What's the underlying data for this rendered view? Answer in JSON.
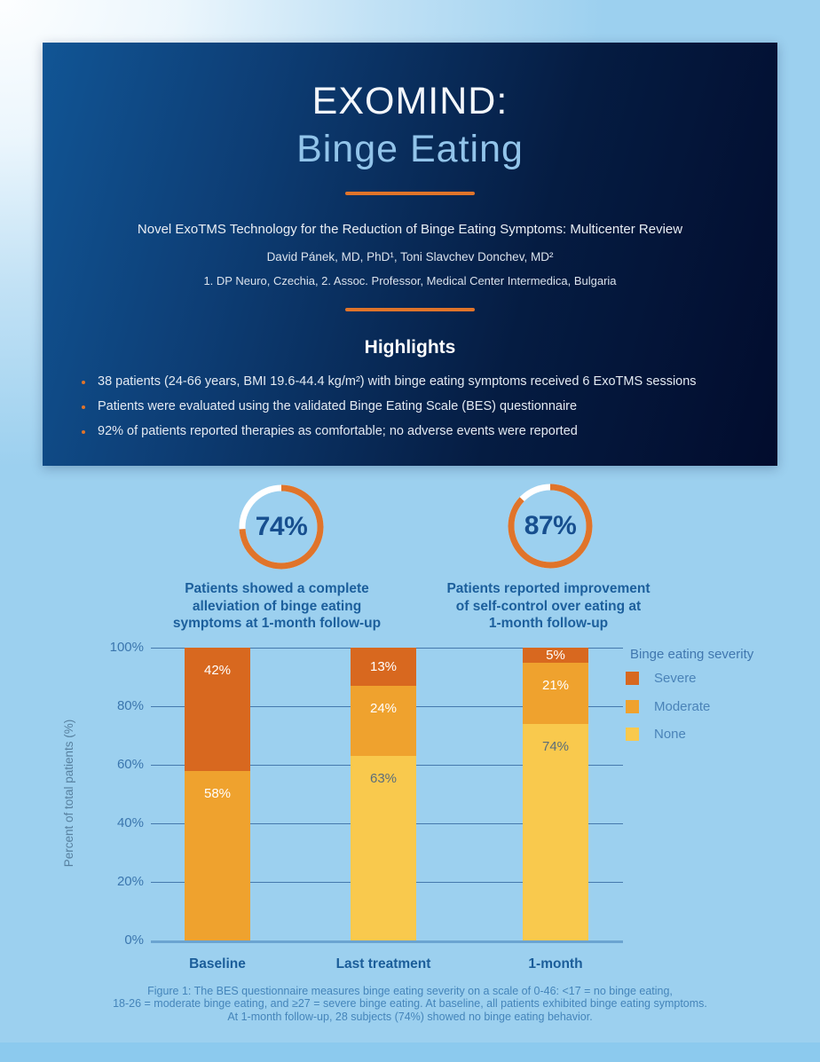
{
  "theme": {
    "accent_orange": "#E0742A",
    "panel_blue_left": "#115595",
    "panel_navy_right": "#020C2D",
    "page_blue": "#9CD0EF",
    "heading_blue": "#1C5F9C"
  },
  "header": {
    "title_line1": "EXOMIND:",
    "title_line2": "Binge Eating",
    "subtitle": "Novel ExoTMS Technology for the Reduction of Binge Eating Symptoms: Multicenter Review",
    "authors": "David Pánek, MD, PhD¹, Toni Slavchev Donchev, MD²",
    "affiliations": "1. DP Neuro, Czechia, 2. Assoc. Professor, Medical Center Intermedica, Bulgaria",
    "highlights_title": "Highlights",
    "highlights": [
      "38 patients (24-66 years, BMI 19.6-44.4 kg/m²) with binge eating symptoms received 6 ExoTMS sessions",
      "Patients were evaluated using the validated Binge Eating Scale (BES) questionnaire",
      "92% of patients reported therapies as comfortable; no adverse events were reported"
    ]
  },
  "chart_data": [
    {
      "type": "donut",
      "value": 74,
      "label": "74%",
      "ring_color": "#E0742A",
      "track_color": "#FFFFFF",
      "caption": "Patients showed a complete\nalleviation of binge eating\nsymptoms at 1-month follow-up"
    },
    {
      "type": "donut",
      "value": 87,
      "label": "87%",
      "ring_color": "#E0742A",
      "track_color": "#FFFFFF",
      "caption": "Patients reported improvement\nof self-control over eating at\n1-month follow-up"
    },
    {
      "type": "bar",
      "stacked": true,
      "categories": [
        "Baseline",
        "Last treatment",
        "1-month"
      ],
      "series": [
        {
          "name": "None",
          "color": "#F9C94D",
          "label_color": "#5B6D7A",
          "values": [
            0,
            63,
            74
          ]
        },
        {
          "name": "Moderate",
          "color": "#EFA22E",
          "label_color": "#FFFFFF",
          "values": [
            58,
            24,
            21
          ]
        },
        {
          "name": "Severe",
          "color": "#D8681F",
          "label_color": "#FFFFFF",
          "values": [
            42,
            13,
            5
          ]
        }
      ],
      "bar_label_suffix": "%",
      "ylabel": "Percent of total patients (%)",
      "yticks": [
        0,
        20,
        40,
        60,
        80,
        100
      ],
      "ytick_suffix": "%",
      "ylim": [
        0,
        100
      ],
      "grid": true,
      "legend_title": "Binge eating severity",
      "legend_position": "right",
      "legend_order": [
        "Severe",
        "Moderate",
        "None"
      ]
    }
  ],
  "figure_caption": "Figure 1: The BES questionnaire measures binge eating severity on a scale of 0-46: <17 = no binge eating,\n18-26 = moderate binge eating, and ≥27 = severe binge eating. At baseline, all patients exhibited binge eating symptoms.\nAt 1-month follow-up, 28 subjects (74%) showed no binge eating behavior."
}
